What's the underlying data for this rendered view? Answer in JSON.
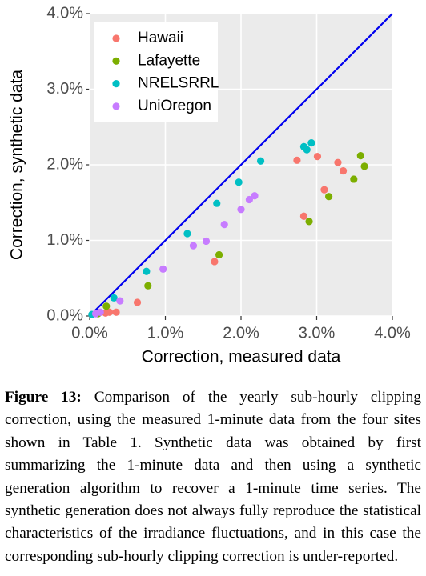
{
  "chart_data": {
    "type": "scatter",
    "xlabel": "Correction, measured data",
    "ylabel": "Correction, synthetic data",
    "xlim": [
      0,
      4
    ],
    "ylim": [
      0,
      4
    ],
    "xticks": [
      {
        "value": 0,
        "label": "0.0%"
      },
      {
        "value": 1,
        "label": "1.0%"
      },
      {
        "value": 2,
        "label": "2.0%"
      },
      {
        "value": 3,
        "label": "3.0%"
      },
      {
        "value": 4,
        "label": "4.0%"
      }
    ],
    "yticks": [
      {
        "value": 0,
        "label": "0.0%"
      },
      {
        "value": 1,
        "label": "1.0%"
      },
      {
        "value": 2,
        "label": "2.0%"
      },
      {
        "value": 3,
        "label": "3.0%"
      },
      {
        "value": 4,
        "label": "4.0%"
      }
    ],
    "grid": true,
    "legend": "upper left",
    "diagonal_line": true,
    "diagonal_color": "#0000ee",
    "series": [
      {
        "name": "Hawaii",
        "color": "#F8766D",
        "x": [
          0.21,
          0.26,
          0.35,
          0.63,
          1.65,
          2.83,
          2.74,
          3.01,
          3.28,
          3.35,
          3.1
        ],
        "values": [
          0.04,
          0.05,
          0.05,
          0.18,
          0.72,
          1.32,
          2.06,
          2.11,
          2.03,
          1.92,
          1.67
        ]
      },
      {
        "name": "Lafayette",
        "color": "#7CAE00",
        "x": [
          0.11,
          0.22,
          0.77,
          1.71,
          2.9,
          3.16,
          3.49,
          3.58,
          3.63
        ],
        "values": [
          0.03,
          0.13,
          0.4,
          0.81,
          1.25,
          1.58,
          1.81,
          2.12,
          1.98
        ]
      },
      {
        "name": "NRELSRRL",
        "color": "#00BFC4",
        "x": [
          0.03,
          0.32,
          0.75,
          1.29,
          1.68,
          1.97,
          2.26,
          2.83,
          2.87,
          2.93
        ],
        "values": [
          0.02,
          0.24,
          0.59,
          1.09,
          1.49,
          1.77,
          2.05,
          2.24,
          2.2,
          2.29
        ]
      },
      {
        "name": "UniOregon",
        "color": "#C77CFF",
        "x": [
          0.08,
          0.14,
          0.4,
          0.97,
          1.37,
          1.54,
          1.78,
          2.0,
          2.11,
          2.18
        ],
        "values": [
          0.03,
          0.05,
          0.2,
          0.62,
          0.93,
          0.99,
          1.21,
          1.41,
          1.54,
          1.59
        ]
      }
    ]
  },
  "caption": {
    "label": "Figure 13:",
    "text": "Comparison of the yearly sub-hourly clipping correction, using the measured 1-minute data from the four sites shown in Table 1. Synthetic data was obtained by first summarizing the 1-minute data and then using a synthetic generation algorithm to recover a 1-minute time series. The synthetic generation does not always fully reproduce the statistical characteristics of the irradiance fluctuations, and in this case the corresponding sub-hourly clipping correction is under-reported."
  }
}
